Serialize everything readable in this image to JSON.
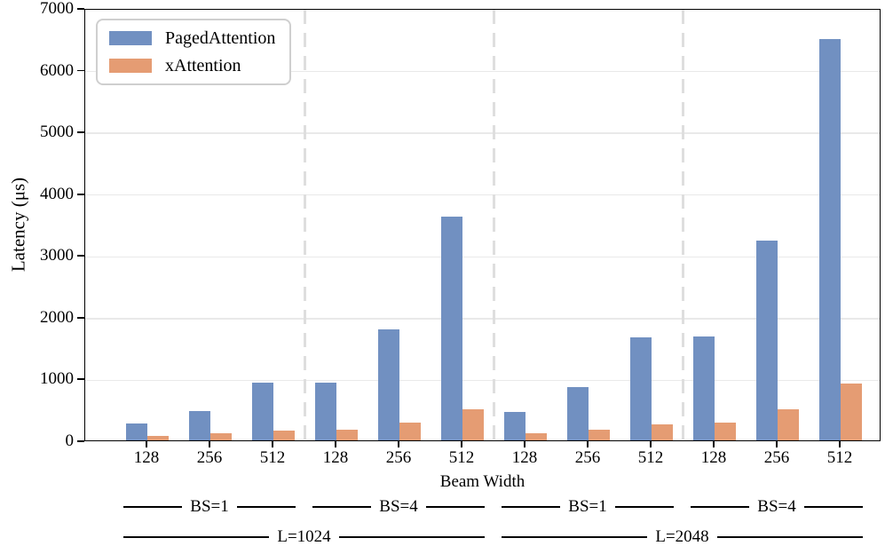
{
  "chart_data": {
    "type": "bar",
    "title": "",
    "xlabel": "Beam Width",
    "ylabel": "Latency (μs)",
    "ylim": [
      0,
      7000
    ],
    "yticks": [
      0,
      1000,
      2000,
      3000,
      4000,
      5000,
      6000,
      7000
    ],
    "categories": [
      "128",
      "256",
      "512",
      "128",
      "256",
      "512",
      "128",
      "256",
      "512",
      "128",
      "256",
      "512"
    ],
    "series": [
      {
        "name": "PagedAttention",
        "color": "#7190c1",
        "values": [
          270,
          480,
          940,
          940,
          1800,
          3620,
          460,
          860,
          1670,
          1680,
          3230,
          6500
        ]
      },
      {
        "name": "xAttention",
        "color": "#e59c73",
        "values": [
          70,
          110,
          160,
          170,
          290,
          510,
          110,
          170,
          260,
          290,
          510,
          920
        ]
      }
    ],
    "group_labels_level1": [
      {
        "label": "BS=1",
        "start": 0,
        "end": 2
      },
      {
        "label": "BS=4",
        "start": 3,
        "end": 5
      },
      {
        "label": "BS=1",
        "start": 6,
        "end": 8
      },
      {
        "label": "BS=4",
        "start": 9,
        "end": 11
      }
    ],
    "group_labels_level2": [
      {
        "label": "L=1024",
        "start": 0,
        "end": 5
      },
      {
        "label": "L=2048",
        "start": 6,
        "end": 11
      }
    ],
    "separators_after": [
      2,
      5,
      8
    ],
    "grid": "horizontal",
    "legend_position": "upper left",
    "colors": {
      "grid": "#e9e9e9",
      "separator": "#dedede",
      "spine": "#000000"
    }
  }
}
